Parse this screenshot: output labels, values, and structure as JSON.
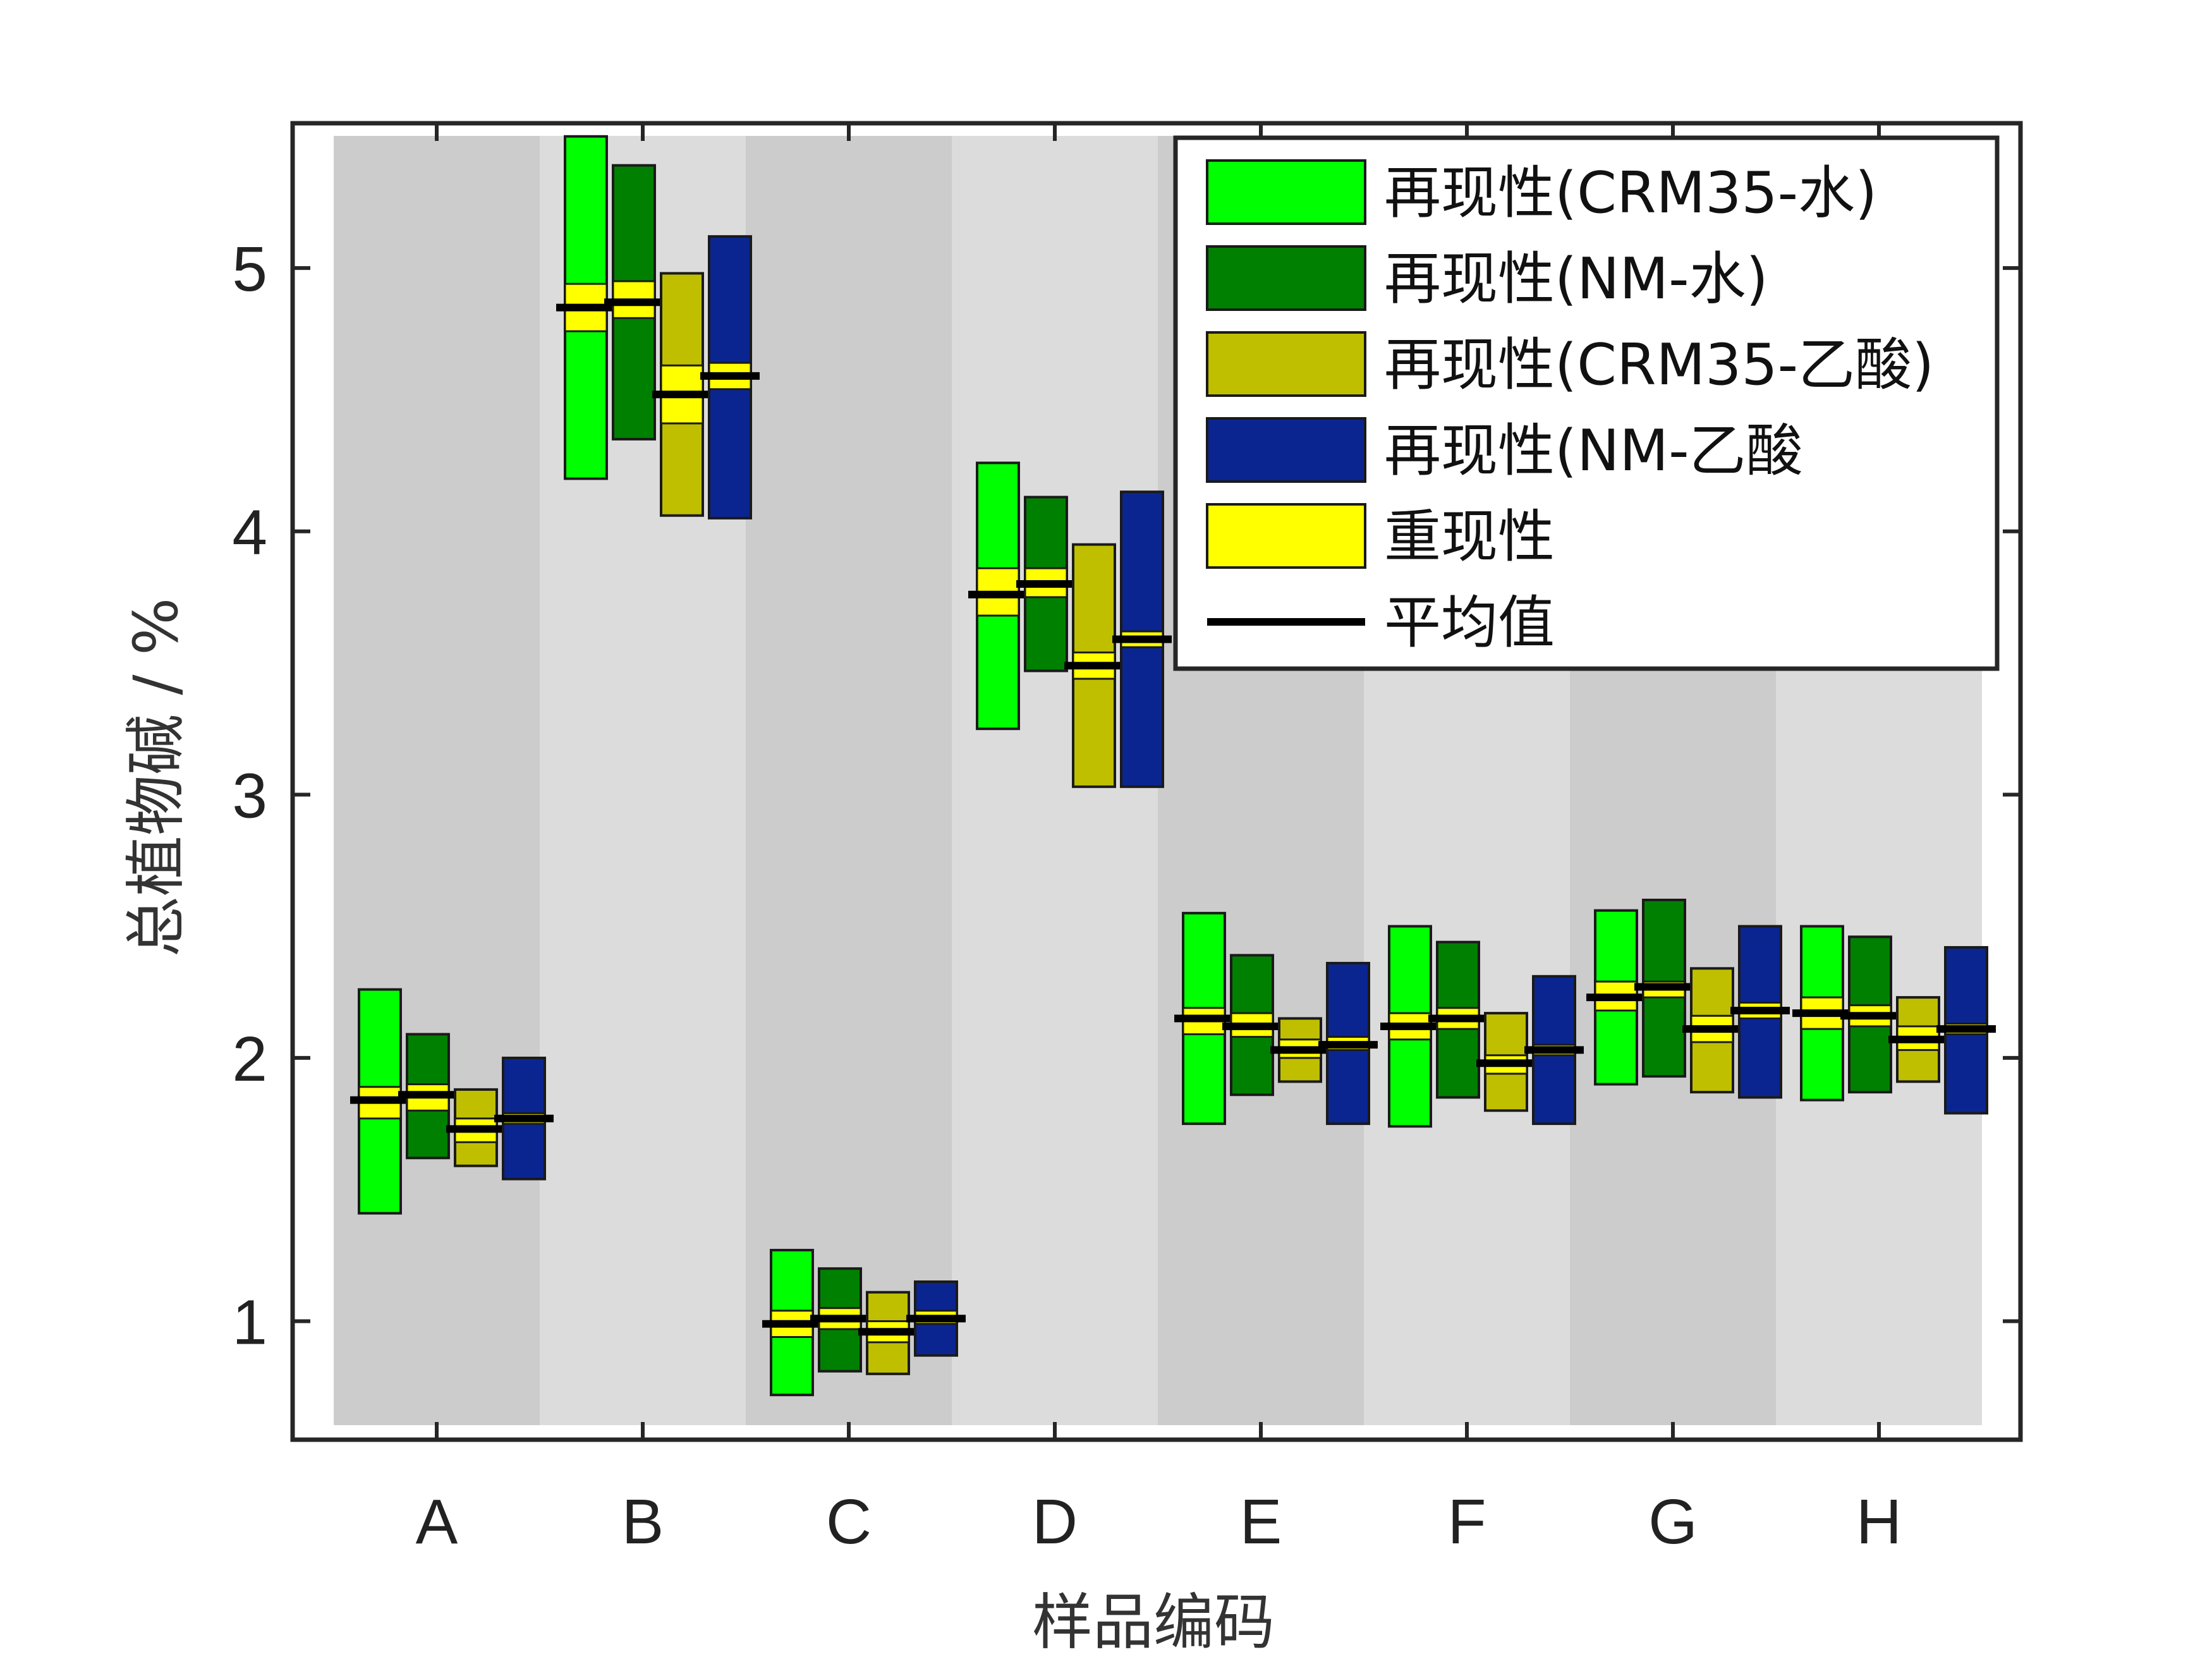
{
  "chart_data": {
    "type": "bar",
    "xlabel": "样品编码",
    "ylabel": "总植物碱 / %",
    "ylim": [
      0.55,
      5.55
    ],
    "yticks": [
      1,
      2,
      3,
      4,
      5
    ],
    "categories": [
      "A",
      "B",
      "C",
      "D",
      "E",
      "F",
      "G",
      "H"
    ],
    "legend_position": "top-right",
    "grid": false,
    "series": [
      {
        "name": "再现性(CRM35-水)",
        "color": "#00ff00",
        "ranges": [
          [
            1.41,
            2.26
          ],
          [
            4.2,
            5.5
          ],
          [
            0.72,
            1.27
          ],
          [
            3.25,
            4.26
          ],
          [
            1.75,
            2.55
          ],
          [
            1.74,
            2.5
          ],
          [
            1.9,
            2.56
          ],
          [
            1.84,
            2.5
          ]
        ],
        "repeatability": [
          [
            1.77,
            1.89
          ],
          [
            4.76,
            4.94
          ],
          [
            0.94,
            1.04
          ],
          [
            3.68,
            3.86
          ],
          [
            2.09,
            2.19
          ],
          [
            2.07,
            2.17
          ],
          [
            2.18,
            2.29
          ],
          [
            2.11,
            2.23
          ]
        ],
        "mean": [
          1.84,
          4.85,
          0.99,
          3.76,
          2.15,
          2.12,
          2.23,
          2.17
        ]
      },
      {
        "name": "再现性(NM-水)",
        "color": "#008000",
        "ranges": [
          [
            1.62,
            2.09
          ],
          [
            4.35,
            5.39
          ],
          [
            0.81,
            1.2
          ],
          [
            3.47,
            4.13
          ],
          [
            1.86,
            2.39
          ],
          [
            1.85,
            2.44
          ],
          [
            1.93,
            2.6
          ],
          [
            1.87,
            2.46
          ]
        ],
        "repeatability": [
          [
            1.8,
            1.9
          ],
          [
            4.81,
            4.95
          ],
          [
            0.97,
            1.05
          ],
          [
            3.75,
            3.86
          ],
          [
            2.08,
            2.17
          ],
          [
            2.11,
            2.19
          ],
          [
            2.23,
            2.29
          ],
          [
            2.12,
            2.2
          ]
        ],
        "mean": [
          1.86,
          4.87,
          1.01,
          3.8,
          2.12,
          2.15,
          2.27,
          2.16
        ]
      },
      {
        "name": "再现性(CRM35-乙酸)",
        "color": "#bfbf00",
        "ranges": [
          [
            1.59,
            1.88
          ],
          [
            4.06,
            4.98
          ],
          [
            0.8,
            1.11
          ],
          [
            3.03,
            3.95
          ],
          [
            1.91,
            2.15
          ],
          [
            1.8,
            2.17
          ],
          [
            1.87,
            2.34
          ],
          [
            1.91,
            2.23
          ]
        ],
        "repeatability": [
          [
            1.68,
            1.77
          ],
          [
            4.41,
            4.63
          ],
          [
            0.92,
            1.0
          ],
          [
            3.44,
            3.54
          ],
          [
            2.0,
            2.07
          ],
          [
            1.94,
            2.01
          ],
          [
            2.06,
            2.16
          ],
          [
            2.03,
            2.12
          ]
        ],
        "mean": [
          1.73,
          4.52,
          0.96,
          3.49,
          2.03,
          1.98,
          2.11,
          2.07
        ]
      },
      {
        "name": "再现性(NM-乙酸",
        "color": "#0b2590",
        "ranges": [
          [
            1.54,
            2.0
          ],
          [
            4.05,
            5.12
          ],
          [
            0.87,
            1.15
          ],
          [
            3.03,
            4.15
          ],
          [
            1.75,
            2.36
          ],
          [
            1.75,
            2.31
          ],
          [
            1.85,
            2.5
          ],
          [
            1.79,
            2.42
          ]
        ],
        "repeatability": [
          [
            1.75,
            1.79
          ],
          [
            4.54,
            4.64
          ],
          [
            0.99,
            1.04
          ],
          [
            3.56,
            3.62
          ],
          [
            2.03,
            2.08
          ],
          [
            2.01,
            2.05
          ],
          [
            2.15,
            2.21
          ],
          [
            2.09,
            2.13
          ]
        ],
        "mean": [
          1.77,
          4.59,
          1.01,
          3.59,
          2.05,
          2.03,
          2.18,
          2.11
        ]
      }
    ],
    "repeatability_label": "重现性",
    "repeatability_color": "#ffff00",
    "mean_label": "平均值",
    "mean_color": "#000000",
    "band_colors": [
      "#cccccc",
      "#dcdcdc"
    ]
  }
}
